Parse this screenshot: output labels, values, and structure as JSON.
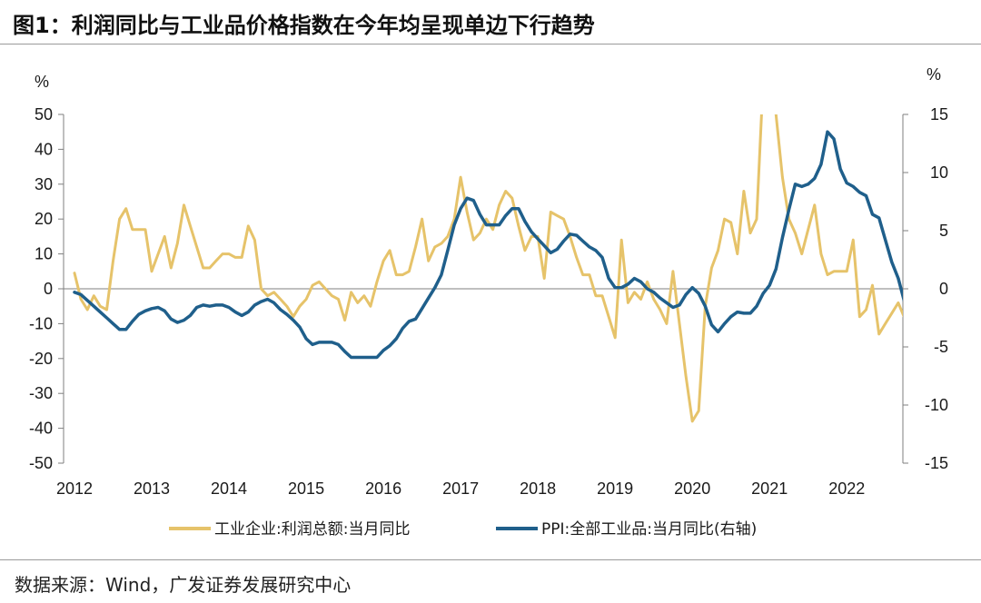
{
  "header": {
    "title": "图1：利润同比与工业品价格指数在今年均呈现单边下行趋势"
  },
  "footer": {
    "source": "数据来源：Wind，广发证券发展研究中心"
  },
  "chart_data": {
    "type": "line",
    "left_axis": {
      "unit": "%",
      "range": [
        -50,
        50
      ],
      "ticks": [
        50,
        40,
        30,
        20,
        10,
        0,
        -10,
        -20,
        -30,
        -40,
        -50
      ]
    },
    "right_axis": {
      "unit": "%",
      "range": [
        -15,
        15
      ],
      "ticks": [
        15,
        10,
        5,
        0,
        -5,
        -10,
        -15
      ]
    },
    "x_labels": [
      "2012",
      "2013",
      "2014",
      "2015",
      "2016",
      "2017",
      "2018",
      "2019",
      "2020",
      "2021",
      "2022"
    ],
    "x_range": [
      2012.0,
      2022.75
    ],
    "series": [
      {
        "name": "工业企业:利润总额:当月同比",
        "axis": "left",
        "color": "#E6C36A",
        "points": [
          [
            2012.0,
            4.5
          ],
          [
            2012.083,
            -3
          ],
          [
            2012.167,
            -6
          ],
          [
            2012.25,
            -2
          ],
          [
            2012.333,
            -5
          ],
          [
            2012.417,
            -6
          ],
          [
            2012.5,
            8
          ],
          [
            2012.583,
            20
          ],
          [
            2012.667,
            23
          ],
          [
            2012.75,
            17
          ],
          [
            2012.833,
            17
          ],
          [
            2012.917,
            17
          ],
          [
            2013.0,
            5
          ],
          [
            2013.083,
            10
          ],
          [
            2013.167,
            15
          ],
          [
            2013.25,
            6
          ],
          [
            2013.333,
            13
          ],
          [
            2013.417,
            24
          ],
          [
            2013.5,
            18
          ],
          [
            2013.583,
            12
          ],
          [
            2013.667,
            6
          ],
          [
            2013.75,
            6
          ],
          [
            2013.833,
            8
          ],
          [
            2013.917,
            10
          ],
          [
            2014.0,
            10
          ],
          [
            2014.083,
            9
          ],
          [
            2014.167,
            9
          ],
          [
            2014.25,
            18
          ],
          [
            2014.333,
            14
          ],
          [
            2014.417,
            0
          ],
          [
            2014.5,
            -2
          ],
          [
            2014.583,
            -1
          ],
          [
            2014.667,
            -3
          ],
          [
            2014.75,
            -5
          ],
          [
            2014.833,
            -8
          ],
          [
            2014.917,
            -5
          ],
          [
            2015.0,
            -3
          ],
          [
            2015.083,
            1
          ],
          [
            2015.167,
            2
          ],
          [
            2015.25,
            0
          ],
          [
            2015.333,
            -2
          ],
          [
            2015.417,
            -3
          ],
          [
            2015.5,
            -9
          ],
          [
            2015.583,
            -1
          ],
          [
            2015.667,
            -4
          ],
          [
            2015.75,
            -2
          ],
          [
            2015.833,
            -5
          ],
          [
            2015.917,
            2
          ],
          [
            2016.0,
            8
          ],
          [
            2016.083,
            11
          ],
          [
            2016.167,
            4
          ],
          [
            2016.25,
            4
          ],
          [
            2016.333,
            5
          ],
          [
            2016.417,
            12
          ],
          [
            2016.5,
            20
          ],
          [
            2016.583,
            8
          ],
          [
            2016.667,
            12
          ],
          [
            2016.75,
            13
          ],
          [
            2016.833,
            15
          ],
          [
            2016.917,
            20
          ],
          [
            2017.0,
            32
          ],
          [
            2017.083,
            22
          ],
          [
            2017.167,
            14
          ],
          [
            2017.25,
            16
          ],
          [
            2017.333,
            20
          ],
          [
            2017.417,
            17
          ],
          [
            2017.5,
            24
          ],
          [
            2017.583,
            28
          ],
          [
            2017.667,
            26
          ],
          [
            2017.75,
            18
          ],
          [
            2017.833,
            11
          ],
          [
            2017.917,
            15
          ],
          [
            2018.0,
            15
          ],
          [
            2018.083,
            3
          ],
          [
            2018.167,
            22
          ],
          [
            2018.25,
            21
          ],
          [
            2018.333,
            20
          ],
          [
            2018.417,
            15
          ],
          [
            2018.5,
            9
          ],
          [
            2018.583,
            4
          ],
          [
            2018.667,
            4
          ],
          [
            2018.75,
            -2
          ],
          [
            2018.833,
            -2
          ],
          [
            2018.917,
            -8
          ],
          [
            2019.0,
            -14
          ],
          [
            2019.083,
            14
          ],
          [
            2019.167,
            -4
          ],
          [
            2019.25,
            -1
          ],
          [
            2019.333,
            -3
          ],
          [
            2019.417,
            2
          ],
          [
            2019.5,
            -3
          ],
          [
            2019.583,
            -6
          ],
          [
            2019.667,
            -10
          ],
          [
            2019.75,
            5
          ],
          [
            2019.833,
            -10
          ],
          [
            2019.917,
            -25
          ],
          [
            2020.0,
            -38
          ],
          [
            2020.083,
            -35
          ],
          [
            2020.167,
            -5
          ],
          [
            2020.25,
            6
          ],
          [
            2020.333,
            11
          ],
          [
            2020.417,
            20
          ],
          [
            2020.5,
            19
          ],
          [
            2020.583,
            10
          ],
          [
            2020.667,
            28
          ],
          [
            2020.75,
            16
          ],
          [
            2020.833,
            20
          ],
          [
            2020.917,
            60
          ],
          [
            2021.0,
            60
          ],
          [
            2021.083,
            50
          ],
          [
            2021.167,
            32
          ],
          [
            2021.25,
            20
          ],
          [
            2021.333,
            16
          ],
          [
            2021.417,
            10
          ],
          [
            2021.5,
            17
          ],
          [
            2021.583,
            24
          ],
          [
            2021.667,
            10
          ],
          [
            2021.75,
            4
          ],
          [
            2021.833,
            5
          ],
          [
            2021.917,
            5
          ],
          [
            2022.0,
            5
          ],
          [
            2022.083,
            14
          ],
          [
            2022.167,
            -8
          ],
          [
            2022.25,
            -6
          ],
          [
            2022.333,
            1
          ],
          [
            2022.417,
            -13
          ],
          [
            2022.5,
            -10
          ],
          [
            2022.583,
            -7
          ],
          [
            2022.667,
            -4
          ],
          [
            2022.75,
            -8.5
          ]
        ]
      },
      {
        "name": "PPI:全部工业品:当月同比(右轴)",
        "axis": "right",
        "color": "#1F5F8B",
        "points": [
          [
            2012.0,
            -0.3
          ],
          [
            2012.083,
            -0.5
          ],
          [
            2012.167,
            -1
          ],
          [
            2012.25,
            -1.5
          ],
          [
            2012.333,
            -2
          ],
          [
            2012.417,
            -2.5
          ],
          [
            2012.5,
            -3
          ],
          [
            2012.583,
            -3.5
          ],
          [
            2012.667,
            -3.5
          ],
          [
            2012.75,
            -2.8
          ],
          [
            2012.833,
            -2.2
          ],
          [
            2012.917,
            -1.9
          ],
          [
            2013.0,
            -1.7
          ],
          [
            2013.083,
            -1.6
          ],
          [
            2013.167,
            -1.9
          ],
          [
            2013.25,
            -2.6
          ],
          [
            2013.333,
            -2.9
          ],
          [
            2013.417,
            -2.7
          ],
          [
            2013.5,
            -2.3
          ],
          [
            2013.583,
            -1.6
          ],
          [
            2013.667,
            -1.4
          ],
          [
            2013.75,
            -1.5
          ],
          [
            2013.833,
            -1.4
          ],
          [
            2013.917,
            -1.4
          ],
          [
            2014.0,
            -1.6
          ],
          [
            2014.083,
            -2.0
          ],
          [
            2014.167,
            -2.3
          ],
          [
            2014.25,
            -2.0
          ],
          [
            2014.333,
            -1.4
          ],
          [
            2014.417,
            -1.1
          ],
          [
            2014.5,
            -0.9
          ],
          [
            2014.583,
            -1.2
          ],
          [
            2014.667,
            -1.8
          ],
          [
            2014.75,
            -2.2
          ],
          [
            2014.833,
            -2.7
          ],
          [
            2014.917,
            -3.3
          ],
          [
            2015.0,
            -4.3
          ],
          [
            2015.083,
            -4.8
          ],
          [
            2015.167,
            -4.6
          ],
          [
            2015.25,
            -4.6
          ],
          [
            2015.333,
            -4.6
          ],
          [
            2015.417,
            -4.8
          ],
          [
            2015.5,
            -5.4
          ],
          [
            2015.583,
            -5.9
          ],
          [
            2015.667,
            -5.9
          ],
          [
            2015.75,
            -5.9
          ],
          [
            2015.833,
            -5.9
          ],
          [
            2015.917,
            -5.9
          ],
          [
            2016.0,
            -5.3
          ],
          [
            2016.083,
            -4.9
          ],
          [
            2016.167,
            -4.3
          ],
          [
            2016.25,
            -3.4
          ],
          [
            2016.333,
            -2.8
          ],
          [
            2016.417,
            -2.6
          ],
          [
            2016.5,
            -1.7
          ],
          [
            2016.583,
            -0.8
          ],
          [
            2016.667,
            0.1
          ],
          [
            2016.75,
            1.2
          ],
          [
            2016.833,
            3.3
          ],
          [
            2016.917,
            5.5
          ],
          [
            2017.0,
            6.9
          ],
          [
            2017.083,
            7.8
          ],
          [
            2017.167,
            7.6
          ],
          [
            2017.25,
            6.4
          ],
          [
            2017.333,
            5.5
          ],
          [
            2017.417,
            5.5
          ],
          [
            2017.5,
            5.5
          ],
          [
            2017.583,
            6.3
          ],
          [
            2017.667,
            6.9
          ],
          [
            2017.75,
            6.9
          ],
          [
            2017.833,
            5.8
          ],
          [
            2017.917,
            4.9
          ],
          [
            2018.0,
            4.3
          ],
          [
            2018.083,
            3.7
          ],
          [
            2018.167,
            3.1
          ],
          [
            2018.25,
            3.4
          ],
          [
            2018.333,
            4.1
          ],
          [
            2018.417,
            4.7
          ],
          [
            2018.5,
            4.6
          ],
          [
            2018.583,
            4.1
          ],
          [
            2018.667,
            3.6
          ],
          [
            2018.75,
            3.3
          ],
          [
            2018.833,
            2.7
          ],
          [
            2018.917,
            0.9
          ],
          [
            2019.0,
            0.1
          ],
          [
            2019.083,
            0.1
          ],
          [
            2019.167,
            0.4
          ],
          [
            2019.25,
            0.9
          ],
          [
            2019.333,
            0.6
          ],
          [
            2019.417,
            0.0
          ],
          [
            2019.5,
            -0.3
          ],
          [
            2019.583,
            -0.8
          ],
          [
            2019.667,
            -1.2
          ],
          [
            2019.75,
            -1.6
          ],
          [
            2019.833,
            -1.4
          ],
          [
            2019.917,
            -0.5
          ],
          [
            2020.0,
            0.1
          ],
          [
            2020.083,
            -0.4
          ],
          [
            2020.167,
            -1.5
          ],
          [
            2020.25,
            -3.1
          ],
          [
            2020.333,
            -3.7
          ],
          [
            2020.417,
            -3.0
          ],
          [
            2020.5,
            -2.4
          ],
          [
            2020.583,
            -2.0
          ],
          [
            2020.667,
            -2.1
          ],
          [
            2020.75,
            -2.1
          ],
          [
            2020.833,
            -1.5
          ],
          [
            2020.917,
            -0.4
          ],
          [
            2021.0,
            0.3
          ],
          [
            2021.083,
            1.7
          ],
          [
            2021.167,
            4.4
          ],
          [
            2021.25,
            6.8
          ],
          [
            2021.333,
            9.0
          ],
          [
            2021.417,
            8.8
          ],
          [
            2021.5,
            9.0
          ],
          [
            2021.583,
            9.5
          ],
          [
            2021.667,
            10.7
          ],
          [
            2021.75,
            13.5
          ],
          [
            2021.833,
            12.9
          ],
          [
            2021.917,
            10.3
          ],
          [
            2022.0,
            9.1
          ],
          [
            2022.083,
            8.8
          ],
          [
            2022.167,
            8.3
          ],
          [
            2022.25,
            8.0
          ],
          [
            2022.333,
            6.4
          ],
          [
            2022.417,
            6.1
          ],
          [
            2022.5,
            4.2
          ],
          [
            2022.583,
            2.3
          ],
          [
            2022.667,
            0.9
          ],
          [
            2022.75,
            -1.2
          ]
        ]
      }
    ]
  }
}
